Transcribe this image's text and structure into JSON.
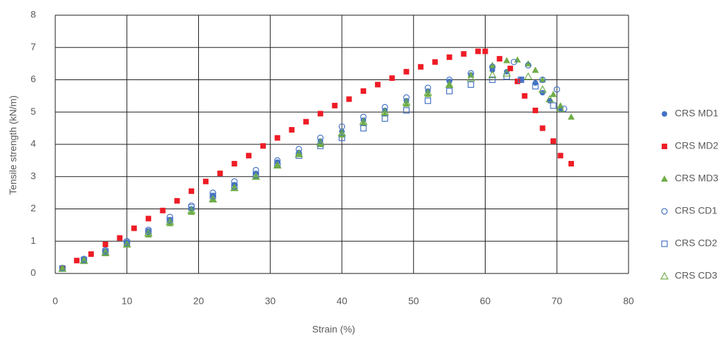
{
  "chart_data": {
    "type": "scatter",
    "xlabel": "Strain (%)",
    "ylabel": "Tensile strength (kN/m)",
    "xlim": [
      0,
      80
    ],
    "xticks": [
      0,
      10,
      20,
      30,
      40,
      50,
      60,
      70,
      80
    ],
    "ylim": [
      0,
      8
    ],
    "yticks": [
      0,
      1,
      2,
      3,
      4,
      5,
      6,
      7,
      8
    ],
    "grid": true,
    "legend": "right",
    "series": [
      {
        "name": "CRS MD1",
        "color": "#4472c4",
        "marker": "circle",
        "filled": true,
        "x": [
          1,
          4,
          7,
          10,
          13,
          16,
          19,
          22,
          25,
          28,
          31,
          34,
          37,
          40,
          43,
          46,
          49,
          52,
          55,
          58,
          61,
          63,
          65,
          67,
          68,
          69,
          70.5
        ],
        "values": [
          0.15,
          0.42,
          0.68,
          0.95,
          1.3,
          1.65,
          2.0,
          2.4,
          2.75,
          3.1,
          3.45,
          3.75,
          4.1,
          4.4,
          4.75,
          5.05,
          5.35,
          5.65,
          5.95,
          6.15,
          6.3,
          6.25,
          6.0,
          5.9,
          5.6,
          5.35,
          5.1
        ]
      },
      {
        "name": "CRS MD2",
        "color": "#ee1c25",
        "marker": "square",
        "filled": true,
        "x": [
          1,
          3,
          5,
          7,
          9,
          11,
          13,
          15,
          17,
          19,
          21,
          23,
          25,
          27,
          29,
          31,
          33,
          35,
          37,
          39,
          41,
          43,
          45,
          47,
          49,
          51,
          53,
          55,
          57,
          59,
          60,
          62,
          63.5,
          64.5,
          65.5,
          67,
          68,
          69.5,
          70.5,
          72
        ],
        "values": [
          0.15,
          0.4,
          0.6,
          0.9,
          1.1,
          1.4,
          1.7,
          1.95,
          2.25,
          2.55,
          2.85,
          3.1,
          3.4,
          3.65,
          3.95,
          4.2,
          4.45,
          4.7,
          4.95,
          5.2,
          5.4,
          5.65,
          5.85,
          6.05,
          6.25,
          6.4,
          6.55,
          6.7,
          6.8,
          6.88,
          6.88,
          6.65,
          6.35,
          5.95,
          5.5,
          5.05,
          4.5,
          4.1,
          3.65,
          3.4
        ]
      },
      {
        "name": "CRS MD3",
        "color": "#70ad47",
        "marker": "triangle",
        "filled": true,
        "x": [
          1,
          4,
          7,
          10,
          13,
          16,
          19,
          22,
          25,
          28,
          31,
          34,
          37,
          40,
          43,
          46,
          49,
          52,
          55,
          58,
          61,
          63,
          64.5,
          66,
          67,
          68,
          69.5,
          70.5,
          72
        ],
        "values": [
          0.15,
          0.38,
          0.62,
          0.9,
          1.2,
          1.55,
          1.9,
          2.3,
          2.65,
          3.0,
          3.35,
          3.7,
          4.0,
          4.3,
          4.65,
          4.95,
          5.25,
          5.55,
          5.85,
          6.15,
          6.45,
          6.6,
          6.62,
          6.5,
          6.3,
          6.0,
          5.55,
          5.2,
          4.85
        ]
      },
      {
        "name": "CRS CD1",
        "color": "#4472c4",
        "marker": "circle",
        "filled": false,
        "x": [
          1,
          4,
          7,
          10,
          13,
          16,
          19,
          22,
          25,
          28,
          31,
          34,
          37,
          40,
          43,
          46,
          49,
          52,
          55,
          58,
          61,
          64,
          66,
          68,
          70,
          71
        ],
        "values": [
          0.17,
          0.45,
          0.72,
          1.0,
          1.35,
          1.75,
          2.1,
          2.5,
          2.85,
          3.2,
          3.5,
          3.85,
          4.2,
          4.55,
          4.85,
          5.15,
          5.45,
          5.75,
          6.0,
          6.2,
          6.4,
          6.55,
          6.45,
          6.0,
          5.7,
          5.1
        ]
      },
      {
        "name": "CRS CD2",
        "color": "#4472c4",
        "marker": "square",
        "filled": false,
        "x": [
          1,
          4,
          7,
          10,
          13,
          16,
          19,
          22,
          25,
          28,
          31,
          34,
          37,
          40,
          43,
          46,
          49,
          52,
          55,
          58,
          61,
          63,
          65,
          67,
          69.5
        ],
        "values": [
          0.15,
          0.42,
          0.68,
          0.95,
          1.3,
          1.65,
          2.05,
          2.4,
          2.7,
          3.05,
          3.35,
          3.65,
          3.95,
          4.2,
          4.5,
          4.8,
          5.05,
          5.35,
          5.65,
          5.85,
          6.0,
          6.1,
          6.0,
          5.8,
          5.2
        ]
      },
      {
        "name": "CRS CD3",
        "color": "#70ad47",
        "marker": "triangle",
        "filled": false,
        "x": [
          1,
          4,
          7,
          10,
          13,
          16,
          19,
          22,
          25,
          28,
          31,
          34,
          37,
          40,
          43,
          46,
          49,
          52,
          55,
          58,
          61,
          63,
          66,
          68,
          69,
          70.5
        ],
        "values": [
          0.15,
          0.4,
          0.65,
          0.9,
          1.25,
          1.6,
          1.95,
          2.3,
          2.65,
          3.0,
          3.35,
          3.7,
          4.05,
          4.35,
          4.7,
          5.0,
          5.3,
          5.6,
          5.85,
          6.05,
          6.15,
          6.2,
          6.1,
          5.7,
          5.4,
          5.1
        ]
      }
    ]
  }
}
